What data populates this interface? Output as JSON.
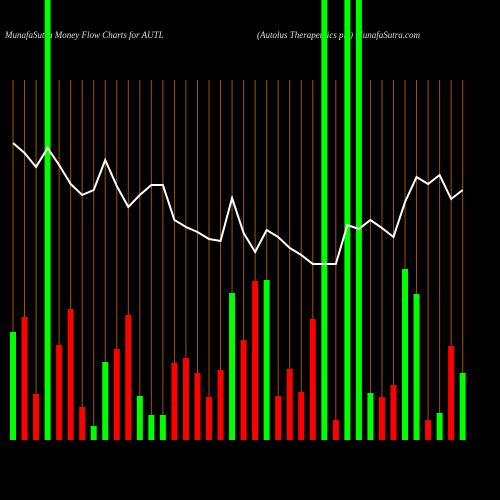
{
  "chart_data": {
    "type": "bar",
    "title": "MunafaSutra  Money Flow  Charts for AUTL",
    "subtitle": "(Autolus Therapeutics plc) MunafaSutra.com",
    "categories": [
      null,
      null,
      null,
      null,
      null,
      null,
      null,
      null,
      null,
      null,
      null,
      null,
      null,
      null,
      null,
      null,
      null,
      null,
      null,
      null,
      null,
      null,
      null,
      null,
      null,
      null,
      null,
      null,
      null,
      null,
      null,
      null,
      null,
      null,
      null,
      null,
      null,
      null,
      null,
      null
    ],
    "ylim": [
      0,
      440
    ],
    "grid_color": "#a0520a",
    "bar_values": [
      108,
      123,
      46,
      440,
      95,
      131,
      33,
      14,
      78,
      91,
      125,
      44,
      25,
      25,
      77,
      82,
      67,
      43,
      70,
      147,
      100,
      159,
      160,
      44,
      71,
      48,
      121,
      440,
      20,
      440,
      440,
      47,
      43,
      55,
      171,
      146,
      20,
      27,
      94,
      67
    ],
    "bar_colors": [
      "#00ff00",
      "#ff0000",
      "#ff0000",
      "#00ff00",
      "#ff0000",
      "#ff0000",
      "#ff0000",
      "#00ff00",
      "#00ff00",
      "#ff0000",
      "#ff0000",
      "#00ff00",
      "#00ff00",
      "#00ff00",
      "#ff0000",
      "#ff0000",
      "#ff0000",
      "#ff0000",
      "#ff0000",
      "#00ff00",
      "#ff0000",
      "#ff0000",
      "#00ff00",
      "#ff0000",
      "#ff0000",
      "#ff0000",
      "#ff0000",
      "#00ff00",
      "#ff0000",
      "#00ff00",
      "#00ff00",
      "#00ff00",
      "#ff0000",
      "#ff0000",
      "#00ff00",
      "#00ff00",
      "#ff0000",
      "#00ff00",
      "#ff0000",
      "#00ff00"
    ],
    "line_color": "#ffffff",
    "line_values": [
      297,
      287,
      273,
      292,
      275,
      256,
      245,
      250,
      280,
      254,
      233,
      245,
      255,
      255,
      220,
      213,
      208,
      201,
      199,
      242,
      207,
      188,
      210,
      203,
      192,
      185,
      176,
      176,
      176,
      215,
      211,
      220,
      212,
      203,
      238,
      263,
      256,
      265,
      241,
      250
    ]
  }
}
